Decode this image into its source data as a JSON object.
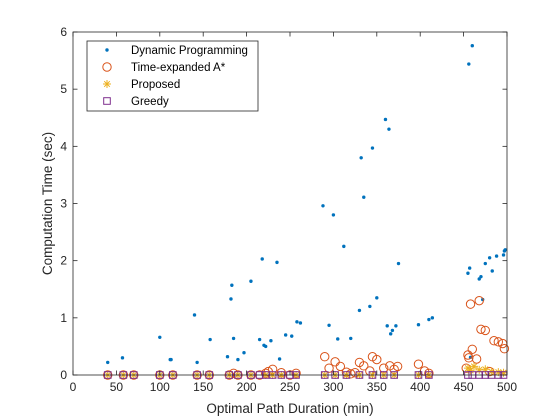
{
  "chart_data": {
    "type": "scatter",
    "title": "",
    "xlabel": "Optimal Path Duration (min)",
    "ylabel": "Computation Time (sec)",
    "xlim": [
      0,
      500
    ],
    "ylim": [
      0,
      6
    ],
    "xticks": [
      "0",
      "50",
      "100",
      "150",
      "200",
      "250",
      "300",
      "350",
      "400",
      "450",
      "500"
    ],
    "yticks": [
      "0",
      "1",
      "2",
      "3",
      "4",
      "5",
      "6"
    ],
    "grid": false,
    "box": true,
    "legend_position": "top-left",
    "series": [
      {
        "name": "Dynamic Programming",
        "marker": "dot",
        "color": "#0072BD",
        "x": [
          40,
          57,
          100,
          112,
          113,
          140,
          143,
          158,
          178,
          182,
          183,
          185,
          190,
          197,
          205,
          215,
          218,
          220,
          222,
          228,
          235,
          238,
          245,
          252,
          258,
          262,
          288,
          295,
          300,
          305,
          312,
          320,
          330,
          332,
          335,
          342,
          345,
          350,
          360,
          362,
          364,
          366,
          368,
          372,
          375,
          398,
          410,
          414,
          455,
          456,
          457,
          458,
          460,
          468,
          470,
          472,
          475,
          480,
          483,
          488,
          496,
          497,
          498
        ],
        "y": [
          0.22,
          0.3,
          0.66,
          0.27,
          0.27,
          1.05,
          0.22,
          0.62,
          0.32,
          1.33,
          1.57,
          0.64,
          0.27,
          0.39,
          1.64,
          0.62,
          2.03,
          0.52,
          0.5,
          0.6,
          1.97,
          0.28,
          0.7,
          0.68,
          0.93,
          0.91,
          2.96,
          0.87,
          2.8,
          0.63,
          2.25,
          0.64,
          1.13,
          3.8,
          3.11,
          1.2,
          3.97,
          1.35,
          4.47,
          0.86,
          4.3,
          0.72,
          0.78,
          0.86,
          1.95,
          0.88,
          0.97,
          1.0,
          1.78,
          5.44,
          1.87,
          0.31,
          5.76,
          1.68,
          1.72,
          1.32,
          1.95,
          2.05,
          1.82,
          2.08,
          2.1,
          2.17,
          2.19
        ]
      },
      {
        "name": "Time-expanded A*",
        "marker": "circle",
        "color": "#D95319",
        "x": [
          40,
          58,
          70,
          100,
          115,
          143,
          157,
          180,
          185,
          190,
          205,
          215,
          222,
          225,
          230,
          240,
          250,
          257,
          290,
          295,
          302,
          308,
          315,
          320,
          325,
          330,
          335,
          342,
          345,
          350,
          358,
          365,
          370,
          374,
          398,
          405,
          410,
          453,
          455,
          456,
          458,
          460,
          465,
          468,
          470,
          475,
          480,
          485,
          490,
          495,
          497
        ],
        "y": [
          0,
          0,
          0,
          0,
          0,
          0,
          0,
          0,
          0.03,
          0,
          0,
          0,
          0.03,
          0.06,
          0.1,
          0.04,
          0,
          0.03,
          0.32,
          0.12,
          0.23,
          0.15,
          0.05,
          0.02,
          0.04,
          0.22,
          0.16,
          0.07,
          0.32,
          0.27,
          0.12,
          0.16,
          0.1,
          0.15,
          0.19,
          0.07,
          0.03,
          0.12,
          0.35,
          0.3,
          1.24,
          0.45,
          0.28,
          1.3,
          0.8,
          0.78,
          0.06,
          0.6,
          0.58,
          0.55,
          0.46
        ]
      },
      {
        "name": "Proposed",
        "marker": "asterisk",
        "color": "#EDB120",
        "x": [
          40,
          58,
          70,
          100,
          115,
          143,
          157,
          180,
          190,
          205,
          222,
          230,
          240,
          257,
          290,
          302,
          315,
          330,
          345,
          358,
          370,
          398,
          410,
          455,
          458,
          462,
          468,
          475,
          482,
          490,
          496
        ],
        "y": [
          0,
          0,
          0,
          0,
          0,
          0,
          0,
          0,
          0,
          0,
          0,
          0,
          0,
          0,
          0,
          0,
          0,
          0,
          0,
          0,
          0,
          0,
          0,
          0.12,
          0.08,
          0.15,
          0.09,
          0.1,
          0.06,
          0.05,
          0.04
        ]
      },
      {
        "name": "Greedy",
        "marker": "square",
        "color": "#7E2F8E",
        "x": [
          40,
          58,
          70,
          100,
          115,
          143,
          157,
          180,
          190,
          205,
          215,
          222,
          230,
          240,
          250,
          257,
          290,
          302,
          315,
          330,
          345,
          358,
          370,
          398,
          410,
          455,
          460,
          468,
          475,
          482,
          490,
          496
        ],
        "y": [
          0,
          0,
          0,
          0,
          0,
          0,
          0,
          0,
          0,
          0,
          0,
          0,
          0,
          0,
          0,
          0,
          0,
          0,
          0,
          0,
          0,
          0,
          0,
          0,
          0,
          0,
          0,
          0,
          0,
          0,
          0,
          0
        ]
      }
    ]
  }
}
